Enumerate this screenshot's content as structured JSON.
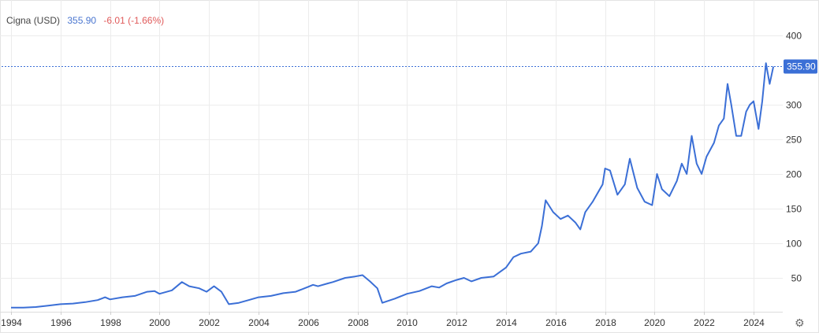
{
  "header": {
    "title": "Cigna (USD)",
    "price": "355.90",
    "change": "-6.01 (-1.66%)"
  },
  "settings_icon": "gear-icon",
  "colors": {
    "line": "#3b6fd6",
    "price_tag": "#3b6fd6",
    "change": "#e05a5a",
    "grid": "#ececec"
  },
  "chart_data": {
    "type": "line",
    "title": "Cigna (USD)",
    "xlabel": "",
    "ylabel": "",
    "xlim": [
      1994,
      2025.15
    ],
    "ylim": [
      0,
      400
    ],
    "x_ticks": [
      "1994",
      "1996",
      "1998",
      "2000",
      "2002",
      "2004",
      "2006",
      "2008",
      "2010",
      "2012",
      "2014",
      "2016",
      "2018",
      "2020",
      "2022",
      "2024"
    ],
    "y_ticks": [
      "50",
      "100",
      "150",
      "200",
      "250",
      "300",
      "400"
    ],
    "grid": true,
    "last_value_label": "355.90",
    "last_value": 355.9,
    "series": [
      {
        "x": [
          1994.0,
          1994.5,
          1995.0,
          1995.5,
          1996.0,
          1996.5,
          1997.0,
          1997.5,
          1997.8,
          1998.0,
          1998.5,
          1999.0,
          1999.5,
          1999.8,
          2000.0,
          2000.5,
          2000.9,
          2001.2,
          2001.6,
          2001.9,
          2002.2,
          2002.5,
          2002.8,
          2003.2,
          2003.6,
          2004.0,
          2004.5,
          2005.0,
          2005.5,
          2006.0,
          2006.2,
          2006.4,
          2006.8,
          2007.0,
          2007.5,
          2007.9,
          2008.2,
          2008.5,
          2008.8,
          2009.0,
          2009.5,
          2010.0,
          2010.5,
          2011.0,
          2011.3,
          2011.6,
          2012.0,
          2012.3,
          2012.6,
          2013.0,
          2013.5,
          2014.0,
          2014.3,
          2014.6,
          2015.0,
          2015.3,
          2015.45,
          2015.6,
          2015.9,
          2016.2,
          2016.5,
          2016.8,
          2017.0,
          2017.2,
          2017.5,
          2017.9,
          2018.0,
          2018.2,
          2018.5,
          2018.8,
          2019.0,
          2019.3,
          2019.6,
          2019.9,
          2020.1,
          2020.3,
          2020.6,
          2020.9,
          2021.1,
          2021.3,
          2021.5,
          2021.7,
          2021.9,
          2022.1,
          2022.4,
          2022.6,
          2022.8,
          2022.95,
          2023.1,
          2023.3,
          2023.5,
          2023.7,
          2023.85,
          2024.0,
          2024.2,
          2024.35,
          2024.5,
          2024.65,
          2024.8
        ],
        "y": [
          7,
          7,
          8,
          10,
          12,
          13,
          15,
          18,
          22,
          19,
          22,
          24,
          30,
          31,
          27,
          32,
          44,
          38,
          35,
          30,
          38,
          30,
          12,
          14,
          18,
          22,
          24,
          28,
          30,
          37,
          40,
          38,
          42,
          44,
          50,
          52,
          54,
          45,
          35,
          14,
          20,
          27,
          31,
          38,
          36,
          42,
          47,
          50,
          45,
          50,
          52,
          65,
          80,
          85,
          88,
          100,
          125,
          162,
          145,
          135,
          140,
          130,
          120,
          145,
          160,
          185,
          208,
          205,
          170,
          185,
          222,
          180,
          160,
          155,
          200,
          178,
          168,
          190,
          215,
          200,
          255,
          215,
          200,
          225,
          245,
          270,
          280,
          330,
          300,
          255,
          255,
          290,
          300,
          305,
          265,
          305,
          360,
          330,
          355
        ]
      }
    ]
  }
}
